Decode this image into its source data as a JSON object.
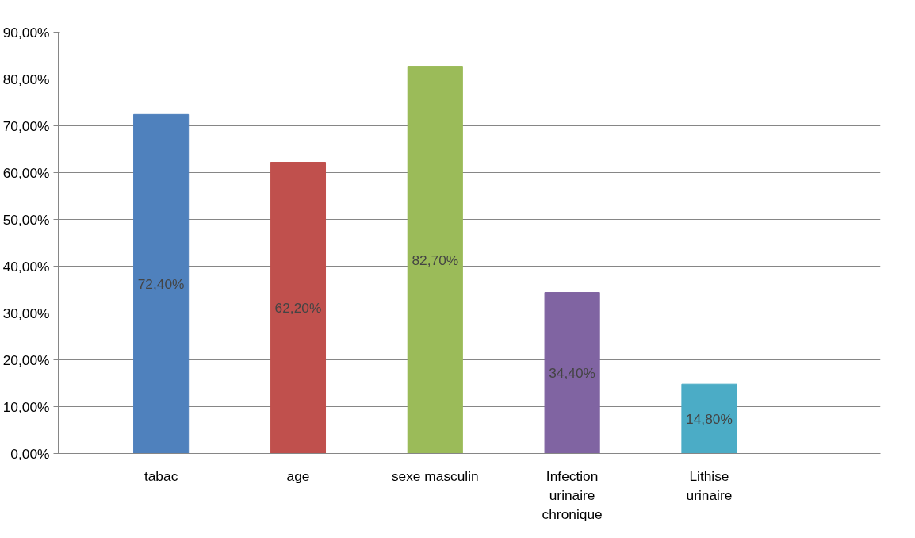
{
  "chart_data": {
    "type": "bar",
    "categories": [
      "tabac",
      "age",
      "sexe masculin",
      "Infection urinaire chronique",
      "Lithise urinaire"
    ],
    "values": [
      72.4,
      62.2,
      82.7,
      34.4,
      14.8
    ],
    "colors": [
      "#4f81bd",
      "#c0504d",
      "#9bbb59",
      "#8064a2",
      "#4bacc6"
    ],
    "value_labels": [
      "72,40%",
      "62,20%",
      "82,70%",
      "34,40%",
      "14,80%"
    ],
    "ylim": [
      0,
      90
    ],
    "yticks": [
      {
        "value": 0,
        "label": "0,00%"
      },
      {
        "value": 10,
        "label": "10,00%"
      },
      {
        "value": 20,
        "label": "20,00%"
      },
      {
        "value": 30,
        "label": "30,00%"
      },
      {
        "value": 40,
        "label": "40,00%"
      },
      {
        "value": 50,
        "label": "50,00%"
      },
      {
        "value": 60,
        "label": "60,00%"
      },
      {
        "value": 70,
        "label": "70,00%"
      },
      {
        "value": 80,
        "label": "80,00%"
      },
      {
        "value": 90,
        "label": "90,00%"
      }
    ],
    "grid": "y"
  }
}
